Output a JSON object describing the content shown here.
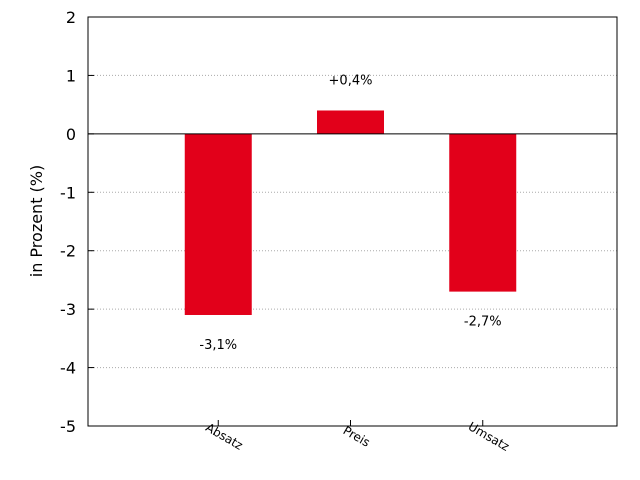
{
  "chart_data": {
    "type": "bar",
    "categories": [
      "Absatz",
      "Preis",
      "Umsatz"
    ],
    "values": [
      -3.1,
      0.4,
      -2.7
    ],
    "value_labels": [
      "-3,1%",
      "+0,4%",
      "-2,7%"
    ],
    "ylabel": "in Prozent (%)",
    "ylim": [
      -5,
      2
    ],
    "yticks": [
      2,
      1,
      0,
      -1,
      -2,
      -3,
      -4,
      -5
    ],
    "grid": true,
    "legend": "none",
    "bar_color": "#e2001a"
  }
}
